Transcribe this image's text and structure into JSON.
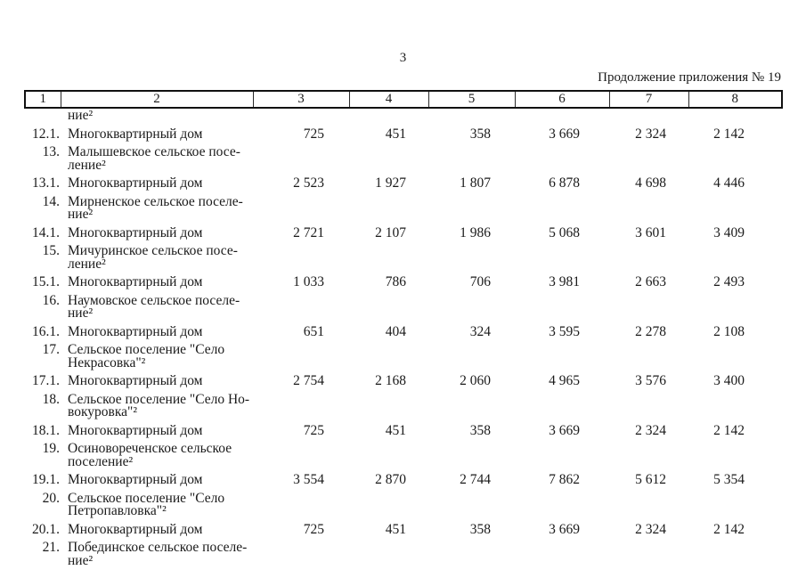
{
  "page": {
    "number": "3",
    "continuation": "Продолжение приложения № 19"
  },
  "table": {
    "columns": [
      "1",
      "2",
      "3",
      "4",
      "5",
      "6",
      "7",
      "8"
    ],
    "rows": [
      {
        "num": "",
        "name_lines": [
          "ние²"
        ],
        "values": [],
        "partial": true
      },
      {
        "num": "12.1.",
        "name_lines": [
          "Многоквартирный дом"
        ],
        "values": [
          "725",
          "451",
          "358",
          "3 669",
          "2 324",
          "2 142"
        ]
      },
      {
        "num": "13.",
        "name_lines": [
          "Малышевское сельское посе-",
          "ление²"
        ],
        "values": []
      },
      {
        "num": "13.1.",
        "name_lines": [
          "Многоквартирный дом"
        ],
        "values": [
          "2 523",
          "1 927",
          "1 807",
          "6 878",
          "4 698",
          "4 446"
        ]
      },
      {
        "num": "14.",
        "name_lines": [
          "Мирненское сельское поселе-",
          "ние²"
        ],
        "values": []
      },
      {
        "num": "14.1.",
        "name_lines": [
          "Многоквартирный дом"
        ],
        "values": [
          "2 721",
          "2 107",
          "1 986",
          "5 068",
          "3 601",
          "3 409"
        ]
      },
      {
        "num": "15.",
        "name_lines": [
          "Мичуринское сельское посе-",
          "ление²"
        ],
        "values": []
      },
      {
        "num": "15.1.",
        "name_lines": [
          "Многоквартирный дом"
        ],
        "values": [
          "1 033",
          "786",
          "706",
          "3 981",
          "2 663",
          "2 493"
        ]
      },
      {
        "num": "16.",
        "name_lines": [
          "Наумовское сельское поселе-",
          "ние²"
        ],
        "values": []
      },
      {
        "num": "16.1.",
        "name_lines": [
          "Многоквартирный дом"
        ],
        "values": [
          "651",
          "404",
          "324",
          "3 595",
          "2 278",
          "2 108"
        ]
      },
      {
        "num": "17.",
        "name_lines": [
          "Сельское поселение \"Село",
          "Некрасовка\"²"
        ],
        "values": []
      },
      {
        "num": "17.1.",
        "name_lines": [
          "Многоквартирный дом"
        ],
        "values": [
          "2 754",
          "2 168",
          "2 060",
          "4 965",
          "3 576",
          "3 400"
        ]
      },
      {
        "num": "18.",
        "name_lines": [
          "Сельское поселение \"Село Но-",
          "вокуровка\"²"
        ],
        "values": []
      },
      {
        "num": "18.1.",
        "name_lines": [
          "Многоквартирный дом"
        ],
        "values": [
          "725",
          "451",
          "358",
          "3 669",
          "2 324",
          "2 142"
        ]
      },
      {
        "num": "19.",
        "name_lines": [
          "Осиновореченское сельское",
          "поселение²"
        ],
        "values": []
      },
      {
        "num": "19.1.",
        "name_lines": [
          "Многоквартирный дом"
        ],
        "values": [
          "3 554",
          "2 870",
          "2 744",
          "7 862",
          "5 612",
          "5 354"
        ]
      },
      {
        "num": "20.",
        "name_lines": [
          "Сельское поселение \"Село",
          "Петропавловка\"²"
        ],
        "values": []
      },
      {
        "num": "20.1.",
        "name_lines": [
          "Многоквартирный дом"
        ],
        "values": [
          "725",
          "451",
          "358",
          "3 669",
          "2 324",
          "2 142"
        ]
      },
      {
        "num": "21.",
        "name_lines": [
          "Побединское сельское поселе-",
          "ние²"
        ],
        "values": []
      }
    ]
  }
}
